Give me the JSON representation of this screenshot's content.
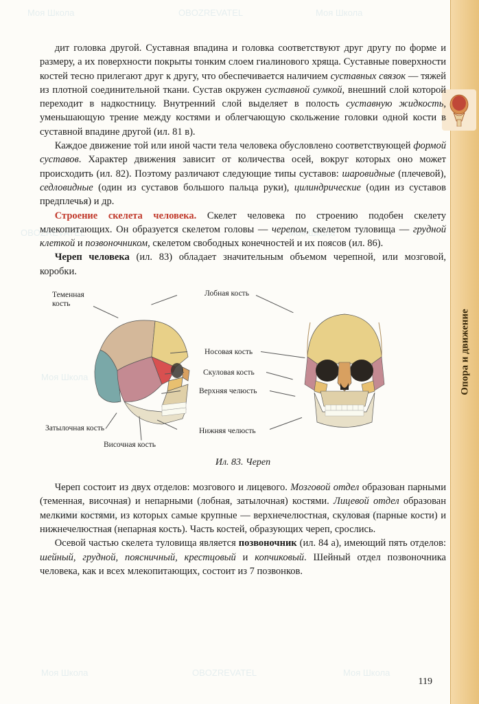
{
  "sidebar": {
    "label": "Опора и движение",
    "tab_bg_start": "#f5d9a8",
    "tab_bg_end": "#e8c17a"
  },
  "paragraphs": {
    "p1": "дит головка другой. Суставная впадина и головка соответствуют друг другу по форме и размеру, а их поверхности покрыты тонким слоем гиалинового хряща. Суставные поверхности костей тесно прилегают друг к другу, что обеспечивается наличием ",
    "p1_it1": "суставных связок",
    "p1_cont1": " — тяжей из плотной соединительной ткани. Сустав окружен ",
    "p1_it2": "суставной сумкой",
    "p1_cont2": ", внешний слой которой переходит в надкостницу. Внутренний слой выделяет в полость ",
    "p1_it3": "суставную жидкость",
    "p1_cont3": ", уменьшающую трение между костями и облегчающую скольжение головки одной кости в суставной впадине другой (ил. 81 в).",
    "p2": "Каждое движение той или иной части тела человека обусловлено соответствующей ",
    "p2_it1": "формой суставов",
    "p2_cont1": ". Характер движения зависит от количества осей, вокруг которых оно может происходить (ил. 82). Поэтому различают следующие типы суставов: ",
    "p2_it2": "шаровидные",
    "p2_cont2": " (плечевой), ",
    "p2_it3": "седловидные",
    "p2_cont3": " (один из суставов большого пальца руки), ",
    "p2_it4": "цилиндрические",
    "p2_cont4": " (один из суставов предплечья) и др.",
    "p3_title": "Строение скелета человека.",
    "p3": " Скелет человека по строению подобен скелету млекопитающих. Он образуется скелетом головы — ",
    "p3_it1": "черепом",
    "p3_cont1": ", скелетом туловища — ",
    "p3_it2": "грудной клеткой",
    "p3_cont2": " и ",
    "p3_it3": "позвоночником",
    "p3_cont3": ", скелетом свободных конечностей и их поясов (ил. 86).",
    "p4_b1": "Череп человека",
    "p4": " (ил. 83) обладает значительным объемом черепной, или мозговой, коробки.",
    "p5": "Череп состоит из двух отделов: мозгового и лицевого. ",
    "p5_it1": "Мозговой отдел",
    "p5_cont1": " образован парными (теменная, височная) и непарными (лобная, затылочная) костями. ",
    "p5_it2": "Лицевой отдел",
    "p5_cont2": " образован мелкими костями, из которых самые крупные — верхнечелюстная, скуловая (парные кости) и нижнечелюстная (непарная кость). Часть костей, образующих череп, срослись.",
    "p6": "Осевой частью скелета туловища является ",
    "p6_b1": "позвоночник",
    "p6_cont1": " (ил. 84 а), имеющий пять отделов: ",
    "p6_it1": "шейный, грудной, поясничный, крестцовый",
    "p6_cont2": " и ",
    "p6_it2": "копчиковый",
    "p6_cont3": ". Шейный отдел позвоночника человека, как и всех млекопитающих, состоит из 7 позвонков."
  },
  "figure": {
    "caption": "Ил. 83. Череп",
    "labels": {
      "parietal": "Теменная\nкость",
      "frontal": "Лобная кость",
      "nasal": "Носовая кость",
      "zygomatic": "Скуловая кость",
      "maxilla": "Верхняя челюсть",
      "occipital": "Затылочная кость",
      "temporal": "Височная кость",
      "mandible": "Нижняя челюсть"
    },
    "colors": {
      "parietal": "#d4b89a",
      "frontal": "#e8d088",
      "temporal": "#c48a92",
      "occipital": "#7aa8a8",
      "nasal": "#d8a060",
      "zygomatic": "#e8c070",
      "maxilla": "#e0d0a8",
      "mandible": "#e8e0c8",
      "sphenoid": "#d85050"
    }
  },
  "page_number": "119",
  "watermark_text_1": "Моя Школа",
  "watermark_text_2": "OBOZREVATEL"
}
